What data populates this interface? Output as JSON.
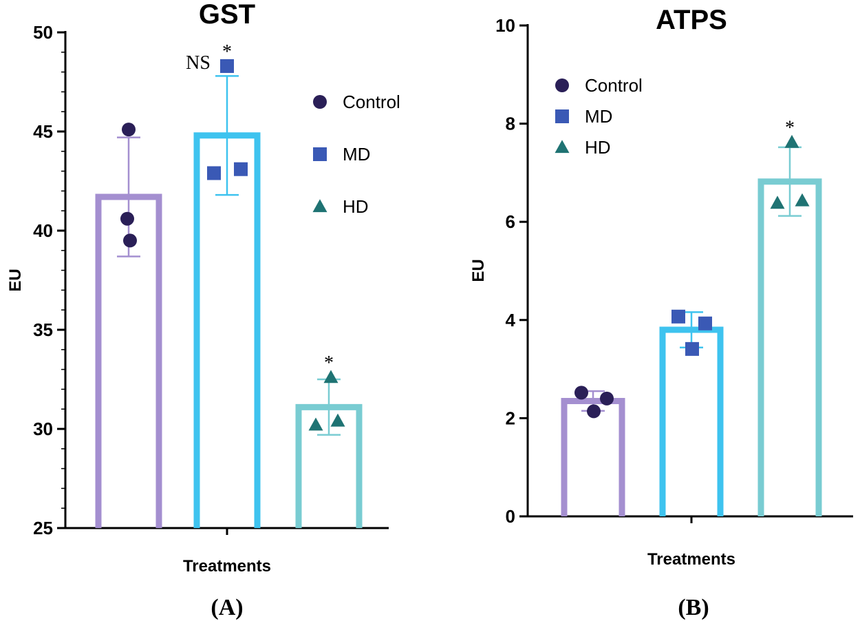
{
  "chart_data": [
    {
      "type": "bar",
      "panel_label": "(A)",
      "title": "GST",
      "xlabel": "Treatments",
      "ylabel": "EU",
      "ylim": [
        25,
        50
      ],
      "yticks": [
        "25",
        "30",
        "35",
        "40",
        "45",
        "50"
      ],
      "ytick_values": [
        25,
        30,
        35,
        40,
        45,
        50
      ],
      "legend": {
        "placement": "top-right",
        "entries": [
          "Control",
          "MD",
          "HD"
        ]
      },
      "annotations": [
        "NS",
        "*",
        "*"
      ],
      "series": [
        {
          "name": "Control",
          "mean": 41.7,
          "sd": 3.0,
          "points": [
            45.1,
            40.6,
            39.5
          ],
          "color": "#a48fd0",
          "marker": "circle",
          "marker_color": "#2a1f57",
          "annotation": ""
        },
        {
          "name": "MD",
          "mean": 44.8,
          "sd": 3.0,
          "points": [
            42.9,
            43.1,
            48.3
          ],
          "color": "#3ec3ef",
          "marker": "square",
          "marker_color": "#3a59b5",
          "annotation": "*",
          "extra_annotation": "NS"
        },
        {
          "name": "HD",
          "mean": 31.1,
          "sd": 1.4,
          "points": [
            30.2,
            30.4,
            32.6
          ],
          "color": "#79ccd2",
          "marker": "triangle",
          "marker_color": "#1f7373",
          "annotation": "*"
        }
      ]
    },
    {
      "type": "bar",
      "panel_label": "(B)",
      "title": "ATPS",
      "xlabel": "Treatments",
      "ylabel": "EU",
      "ylim": [
        0,
        10
      ],
      "yticks": [
        "0",
        "2",
        "4",
        "6",
        "8",
        "10"
      ],
      "ytick_values": [
        0,
        2,
        4,
        6,
        8,
        10
      ],
      "legend": {
        "placement": "top-left",
        "entries": [
          "Control",
          "MD",
          "HD"
        ]
      },
      "annotations": [
        "*"
      ],
      "series": [
        {
          "name": "Control",
          "mean": 2.35,
          "sd": 0.2,
          "points": [
            2.52,
            2.14,
            2.4
          ],
          "color": "#a48fd0",
          "marker": "circle",
          "marker_color": "#2a1f57",
          "annotation": ""
        },
        {
          "name": "MD",
          "mean": 3.8,
          "sd": 0.36,
          "points": [
            4.07,
            3.41,
            3.93
          ],
          "color": "#3ec3ef",
          "marker": "square",
          "marker_color": "#3a59b5",
          "annotation": ""
        },
        {
          "name": "HD",
          "mean": 6.82,
          "sd": 0.7,
          "points": [
            6.38,
            6.43,
            7.62
          ],
          "color": "#79ccd2",
          "marker": "triangle",
          "marker_color": "#1f7373",
          "annotation": "*"
        }
      ]
    }
  ]
}
